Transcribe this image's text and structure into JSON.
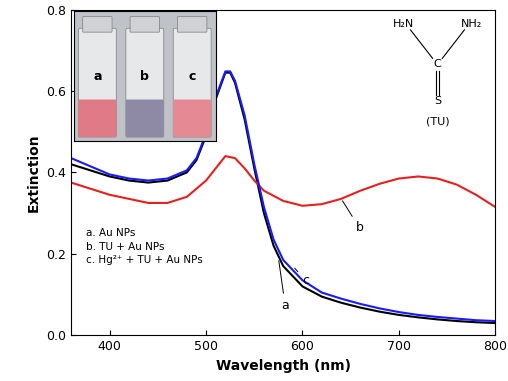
{
  "chart_data": {
    "type": "line",
    "xlabel": "Wavelength (nm)",
    "ylabel": "Extinction",
    "xlim": [
      360,
      800
    ],
    "ylim": [
      0,
      0.8
    ],
    "xticks": [
      400,
      500,
      600,
      700,
      800
    ],
    "yticks": [
      {
        "value": 0,
        "label": "0.0"
      },
      0.2,
      0.4,
      0.6,
      0.8
    ],
    "grid": false,
    "series": [
      {
        "name": "a",
        "color": "#000000",
        "x": [
          360,
          380,
          400,
          420,
          440,
          460,
          480,
          490,
          500,
          510,
          520,
          525,
          530,
          540,
          550,
          560,
          570,
          580,
          600,
          620,
          640,
          660,
          680,
          700,
          720,
          740,
          760,
          780,
          800
        ],
        "values": [
          0.42,
          0.405,
          0.39,
          0.38,
          0.375,
          0.38,
          0.4,
          0.43,
          0.49,
          0.58,
          0.645,
          0.645,
          0.62,
          0.53,
          0.41,
          0.3,
          0.22,
          0.17,
          0.12,
          0.095,
          0.08,
          0.068,
          0.058,
          0.05,
          0.044,
          0.039,
          0.035,
          0.032,
          0.03
        ]
      },
      {
        "name": "b",
        "color": "#e8201c",
        "x": [
          360,
          380,
          400,
          420,
          440,
          460,
          480,
          500,
          510,
          520,
          530,
          540,
          550,
          560,
          580,
          600,
          620,
          640,
          660,
          680,
          700,
          720,
          740,
          760,
          780,
          800
        ],
        "values": [
          0.375,
          0.36,
          0.345,
          0.335,
          0.325,
          0.325,
          0.34,
          0.38,
          0.41,
          0.44,
          0.435,
          0.41,
          0.38,
          0.355,
          0.33,
          0.318,
          0.322,
          0.335,
          0.355,
          0.372,
          0.385,
          0.39,
          0.385,
          0.37,
          0.345,
          0.315
        ]
      },
      {
        "name": "c",
        "color": "#1a1aff",
        "x": [
          360,
          380,
          400,
          420,
          440,
          460,
          480,
          490,
          500,
          510,
          520,
          525,
          530,
          540,
          550,
          560,
          570,
          580,
          600,
          620,
          640,
          660,
          680,
          700,
          720,
          740,
          760,
          780,
          800
        ],
        "values": [
          0.435,
          0.415,
          0.395,
          0.385,
          0.38,
          0.385,
          0.405,
          0.435,
          0.495,
          0.585,
          0.648,
          0.648,
          0.625,
          0.54,
          0.42,
          0.315,
          0.235,
          0.185,
          0.135,
          0.105,
          0.09,
          0.077,
          0.066,
          0.057,
          0.05,
          0.045,
          0.041,
          0.037,
          0.035
        ]
      }
    ],
    "annotations": [
      "a. Au NPs",
      "b. TU + Au NPs",
      "c. Hg²⁺ + TU + Au NPs"
    ],
    "structure": {
      "left": "H₂N",
      "right": "NH₂",
      "center": "C",
      "bottom": "S",
      "caption": "(TU)"
    },
    "inset": {
      "labels": [
        "a",
        "b",
        "c"
      ],
      "colors": [
        "#e07a86",
        "#8e8aa6",
        "#e58a95"
      ]
    }
  }
}
